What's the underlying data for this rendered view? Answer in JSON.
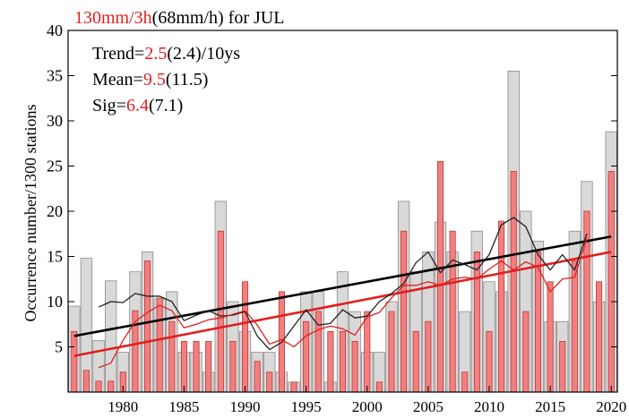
{
  "chart_data": {
    "type": "bar",
    "title_parts": [
      {
        "text": "130mm/3h",
        "color": "#e02020"
      },
      {
        "text": "(68mm/h) for JUL",
        "color": "#000000"
      }
    ],
    "stats": [
      [
        {
          "text": "Trend=",
          "color": "#000000"
        },
        {
          "text": "2.5",
          "color": "#e02020"
        },
        {
          "text": "(2.4)/10ys",
          "color": "#000000"
        }
      ],
      [
        {
          "text": "Mean=",
          "color": "#000000"
        },
        {
          "text": "9.5",
          "color": "#e02020"
        },
        {
          "text": "(11.5)",
          "color": "#000000"
        }
      ],
      [
        {
          "text": "Sig=",
          "color": "#000000"
        },
        {
          "text": "6.4",
          "color": "#e02020"
        },
        {
          "text": "(7.1)",
          "color": "#000000"
        }
      ]
    ],
    "ylabel": "Occurrence number/1300 stations",
    "xlabel": "",
    "ylim": [
      0,
      40
    ],
    "xlim": [
      1975.5,
      2020.5
    ],
    "yticks": [
      5,
      10,
      15,
      20,
      25,
      30,
      35,
      40
    ],
    "xticks": [
      1980,
      1985,
      1990,
      1995,
      2000,
      2005,
      2010,
      2015,
      2020
    ],
    "x": [
      1976,
      1977,
      1978,
      1979,
      1980,
      1981,
      1982,
      1983,
      1984,
      1985,
      1986,
      1987,
      1988,
      1989,
      1990,
      1991,
      1992,
      1993,
      1994,
      1995,
      1996,
      1997,
      1998,
      1999,
      2000,
      2001,
      2002,
      2003,
      2004,
      2005,
      2006,
      2007,
      2008,
      2009,
      2010,
      2011,
      2012,
      2013,
      2014,
      2015,
      2016,
      2017,
      2018,
      2019,
      2020
    ],
    "series": [
      {
        "values": [
          9.5,
          14.8,
          5.7,
          12.3,
          4.4,
          13.3,
          15.5,
          10.3,
          11.1,
          4.4,
          4.4,
          2.2,
          21.1,
          10.0,
          6.7,
          4.4,
          4.4,
          2.2,
          1.1,
          11.1,
          11.1,
          1.1,
          13.3,
          8.9,
          4.4,
          4.4,
          10.0,
          21.1,
          13.3,
          15.5,
          18.8,
          15.5,
          8.9,
          17.8,
          12.2,
          11.1,
          35.5,
          20.0,
          16.7,
          7.8,
          7.8,
          17.8,
          23.3,
          10.0,
          28.8
        ],
        "color": "#d9d9d9"
      },
      {
        "values": [
          6.7,
          2.4,
          1.2,
          1.2,
          2.2,
          9.0,
          14.5,
          10.4,
          7.8,
          5.6,
          5.6,
          5.6,
          17.8,
          5.6,
          12.2,
          3.4,
          2.2,
          11.1,
          1.1,
          7.8,
          8.9,
          6.7,
          6.7,
          5.6,
          8.9,
          1.1,
          8.9,
          17.8,
          6.7,
          7.8,
          25.5,
          17.8,
          2.2,
          15.5,
          6.7,
          18.9,
          24.4,
          8.9,
          15.5,
          12.2,
          5.6,
          14.5,
          20.0,
          12.2,
          24.4
        ],
        "color": "#f08080"
      }
    ],
    "lines": [
      {
        "color": "#000000",
        "x": [
          1976,
          2020
        ],
        "values": [
          6.2,
          17.2
        ]
      },
      {
        "color": "#e02020",
        "x": [
          1976,
          2020
        ],
        "values": [
          4.0,
          15.5
        ]
      },
      {
        "color": "#222222",
        "x": [
          1978,
          1979,
          1980,
          1981,
          1982,
          1983,
          1984,
          1985,
          1986,
          1987,
          1988,
          1989,
          1990,
          1991,
          1992,
          1993,
          1994,
          1995,
          1996,
          1997,
          1998,
          1999,
          2000,
          2001,
          2002,
          2003,
          2004,
          2005,
          2006,
          2007,
          2008,
          2009,
          2010,
          2011,
          2012,
          2013,
          2014,
          2015,
          2016,
          2017,
          2018
        ],
        "values": [
          9.4,
          10.0,
          9.9,
          10.9,
          10.6,
          10.6,
          10.0,
          7.9,
          8.5,
          9.0,
          8.4,
          8.5,
          8.9,
          6.2,
          4.7,
          5.5,
          7.3,
          9.1,
          7.4,
          7.6,
          9.1,
          8.2,
          8.4,
          10.0,
          10.9,
          12.0,
          14.3,
          15.5,
          13.2,
          14.6,
          14.1,
          13.5,
          15.2,
          18.5,
          19.3,
          18.3,
          15.2,
          13.5,
          15.2,
          13.5,
          17.5
        ]
      },
      {
        "color": "#e02020",
        "x": [
          1978,
          1979,
          1980,
          1981,
          1982,
          1983,
          1984,
          1985,
          1986,
          1987,
          1988,
          1989,
          1990,
          1991,
          1992,
          1993,
          1994,
          1995,
          1996,
          1997,
          1998,
          1999,
          2000,
          2001,
          2002,
          2003,
          2004,
          2005,
          2006,
          2007,
          2008,
          2009,
          2010,
          2011,
          2012,
          2013,
          2014,
          2015,
          2016,
          2017,
          2018
        ],
        "values": [
          2.7,
          3.2,
          5.7,
          7.8,
          8.8,
          9.6,
          9.0,
          7.1,
          7.5,
          8.0,
          8.2,
          8.6,
          9.0,
          7.4,
          5.3,
          5.8,
          5.0,
          6.2,
          6.9,
          7.3,
          7.0,
          6.3,
          8.3,
          8.8,
          10.4,
          11.8,
          11.8,
          12.2,
          11.8,
          12.5,
          12.7,
          12.5,
          13.6,
          14.5,
          13.5,
          14.4,
          13.8,
          11.1,
          12.5,
          12.7,
          17.0
        ]
      }
    ]
  }
}
